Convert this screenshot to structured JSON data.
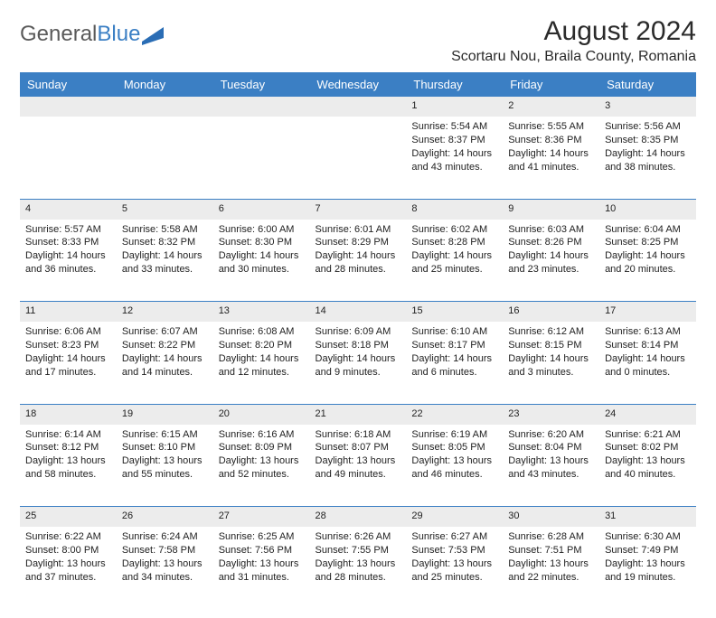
{
  "logo": {
    "word1": "General",
    "word2": "Blue"
  },
  "title": "August 2024",
  "location": "Scortaru Nou, Braila County, Romania",
  "colors": {
    "header_bg": "#3b7fc4",
    "header_text": "#ffffff",
    "daynum_bg": "#ececec",
    "border": "#3b7fc4",
    "logo_gray": "#5a5a5a",
    "logo_blue": "#3b7fc4",
    "page_bg": "#ffffff"
  },
  "typography": {
    "title_fontsize": 30,
    "location_fontsize": 16,
    "header_fontsize": 13,
    "daynum_fontsize": 12,
    "cell_fontsize": 11
  },
  "day_headers": [
    "Sunday",
    "Monday",
    "Tuesday",
    "Wednesday",
    "Thursday",
    "Friday",
    "Saturday"
  ],
  "weeks": [
    {
      "nums": [
        "",
        "",
        "",
        "",
        "1",
        "2",
        "3"
      ],
      "cells": [
        null,
        null,
        null,
        null,
        {
          "sunrise": "5:54 AM",
          "sunset": "8:37 PM",
          "daylight": "14 hours and 43 minutes."
        },
        {
          "sunrise": "5:55 AM",
          "sunset": "8:36 PM",
          "daylight": "14 hours and 41 minutes."
        },
        {
          "sunrise": "5:56 AM",
          "sunset": "8:35 PM",
          "daylight": "14 hours and 38 minutes."
        }
      ]
    },
    {
      "nums": [
        "4",
        "5",
        "6",
        "7",
        "8",
        "9",
        "10"
      ],
      "cells": [
        {
          "sunrise": "5:57 AM",
          "sunset": "8:33 PM",
          "daylight": "14 hours and 36 minutes."
        },
        {
          "sunrise": "5:58 AM",
          "sunset": "8:32 PM",
          "daylight": "14 hours and 33 minutes."
        },
        {
          "sunrise": "6:00 AM",
          "sunset": "8:30 PM",
          "daylight": "14 hours and 30 minutes."
        },
        {
          "sunrise": "6:01 AM",
          "sunset": "8:29 PM",
          "daylight": "14 hours and 28 minutes."
        },
        {
          "sunrise": "6:02 AM",
          "sunset": "8:28 PM",
          "daylight": "14 hours and 25 minutes."
        },
        {
          "sunrise": "6:03 AM",
          "sunset": "8:26 PM",
          "daylight": "14 hours and 23 minutes."
        },
        {
          "sunrise": "6:04 AM",
          "sunset": "8:25 PM",
          "daylight": "14 hours and 20 minutes."
        }
      ]
    },
    {
      "nums": [
        "11",
        "12",
        "13",
        "14",
        "15",
        "16",
        "17"
      ],
      "cells": [
        {
          "sunrise": "6:06 AM",
          "sunset": "8:23 PM",
          "daylight": "14 hours and 17 minutes."
        },
        {
          "sunrise": "6:07 AM",
          "sunset": "8:22 PM",
          "daylight": "14 hours and 14 minutes."
        },
        {
          "sunrise": "6:08 AM",
          "sunset": "8:20 PM",
          "daylight": "14 hours and 12 minutes."
        },
        {
          "sunrise": "6:09 AM",
          "sunset": "8:18 PM",
          "daylight": "14 hours and 9 minutes."
        },
        {
          "sunrise": "6:10 AM",
          "sunset": "8:17 PM",
          "daylight": "14 hours and 6 minutes."
        },
        {
          "sunrise": "6:12 AM",
          "sunset": "8:15 PM",
          "daylight": "14 hours and 3 minutes."
        },
        {
          "sunrise": "6:13 AM",
          "sunset": "8:14 PM",
          "daylight": "14 hours and 0 minutes."
        }
      ]
    },
    {
      "nums": [
        "18",
        "19",
        "20",
        "21",
        "22",
        "23",
        "24"
      ],
      "cells": [
        {
          "sunrise": "6:14 AM",
          "sunset": "8:12 PM",
          "daylight": "13 hours and 58 minutes."
        },
        {
          "sunrise": "6:15 AM",
          "sunset": "8:10 PM",
          "daylight": "13 hours and 55 minutes."
        },
        {
          "sunrise": "6:16 AM",
          "sunset": "8:09 PM",
          "daylight": "13 hours and 52 minutes."
        },
        {
          "sunrise": "6:18 AM",
          "sunset": "8:07 PM",
          "daylight": "13 hours and 49 minutes."
        },
        {
          "sunrise": "6:19 AM",
          "sunset": "8:05 PM",
          "daylight": "13 hours and 46 minutes."
        },
        {
          "sunrise": "6:20 AM",
          "sunset": "8:04 PM",
          "daylight": "13 hours and 43 minutes."
        },
        {
          "sunrise": "6:21 AM",
          "sunset": "8:02 PM",
          "daylight": "13 hours and 40 minutes."
        }
      ]
    },
    {
      "nums": [
        "25",
        "26",
        "27",
        "28",
        "29",
        "30",
        "31"
      ],
      "cells": [
        {
          "sunrise": "6:22 AM",
          "sunset": "8:00 PM",
          "daylight": "13 hours and 37 minutes."
        },
        {
          "sunrise": "6:24 AM",
          "sunset": "7:58 PM",
          "daylight": "13 hours and 34 minutes."
        },
        {
          "sunrise": "6:25 AM",
          "sunset": "7:56 PM",
          "daylight": "13 hours and 31 minutes."
        },
        {
          "sunrise": "6:26 AM",
          "sunset": "7:55 PM",
          "daylight": "13 hours and 28 minutes."
        },
        {
          "sunrise": "6:27 AM",
          "sunset": "7:53 PM",
          "daylight": "13 hours and 25 minutes."
        },
        {
          "sunrise": "6:28 AM",
          "sunset": "7:51 PM",
          "daylight": "13 hours and 22 minutes."
        },
        {
          "sunrise": "6:30 AM",
          "sunset": "7:49 PM",
          "daylight": "13 hours and 19 minutes."
        }
      ]
    }
  ],
  "labels": {
    "sunrise": "Sunrise: ",
    "sunset": "Sunset: ",
    "daylight": "Daylight: "
  }
}
